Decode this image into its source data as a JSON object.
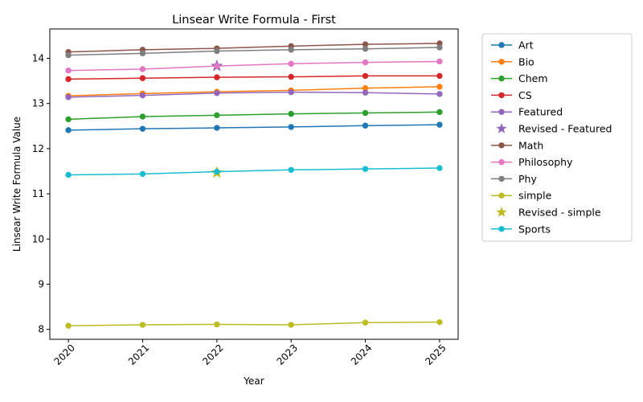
{
  "chart_data": {
    "type": "line",
    "title": "Linsear Write Formula - First",
    "xlabel": "Year",
    "ylabel": "Linsear Write Formula Value",
    "x": [
      "2020",
      "2021",
      "2022",
      "2023",
      "2024",
      "2025"
    ],
    "xlim": [
      2019.75,
      2025.25
    ],
    "ylim": [
      7.78,
      14.65
    ],
    "yticks": [
      8,
      9,
      10,
      11,
      12,
      13,
      14
    ],
    "grid": false,
    "legend_position": "outside-right",
    "series": [
      {
        "name": "Art",
        "color": "#1f77b4",
        "marker": "circle",
        "values": [
          12.41,
          12.44,
          12.46,
          12.48,
          12.51,
          12.53
        ]
      },
      {
        "name": "Bio",
        "color": "#ff7f0e",
        "marker": "circle",
        "values": [
          13.17,
          13.22,
          13.26,
          13.29,
          13.34,
          13.37
        ]
      },
      {
        "name": "Chem",
        "color": "#2ca02c",
        "marker": "circle",
        "values": [
          12.65,
          12.71,
          12.74,
          12.77,
          12.79,
          12.81
        ]
      },
      {
        "name": "CS",
        "color": "#d62728",
        "marker": "circle",
        "values": [
          13.54,
          13.56,
          13.58,
          13.59,
          13.61,
          13.61
        ]
      },
      {
        "name": "Featured",
        "color": "#9467bd",
        "marker": "circle",
        "values": [
          13.14,
          13.18,
          13.23,
          13.25,
          13.24,
          13.21
        ]
      },
      {
        "name": "Revised - Featured",
        "color": "#9467bd",
        "marker": "star",
        "points_only": true,
        "x": [
          "2022"
        ],
        "values": [
          13.83
        ]
      },
      {
        "name": "Math",
        "color": "#8c564b",
        "marker": "circle",
        "values": [
          14.14,
          14.19,
          14.22,
          14.27,
          14.31,
          14.33
        ]
      },
      {
        "name": "Philosophy",
        "color": "#e377c2",
        "marker": "circle",
        "values": [
          13.73,
          13.76,
          13.83,
          13.88,
          13.91,
          13.93
        ]
      },
      {
        "name": "Phy",
        "color": "#7f7f7f",
        "marker": "circle",
        "values": [
          14.07,
          14.11,
          14.16,
          14.19,
          14.21,
          14.24
        ]
      },
      {
        "name": "simple",
        "color": "#bcbd22",
        "marker": "circle",
        "values": [
          8.08,
          8.1,
          8.11,
          8.1,
          8.15,
          8.16
        ]
      },
      {
        "name": "Revised - simple",
        "color": "#bcbd22",
        "marker": "star",
        "points_only": true,
        "x": [
          "2022"
        ],
        "values": [
          11.47
        ]
      },
      {
        "name": "Sports",
        "color": "#17becf",
        "marker": "circle",
        "values": [
          11.42,
          11.44,
          11.49,
          11.53,
          11.55,
          11.57
        ]
      }
    ]
  }
}
